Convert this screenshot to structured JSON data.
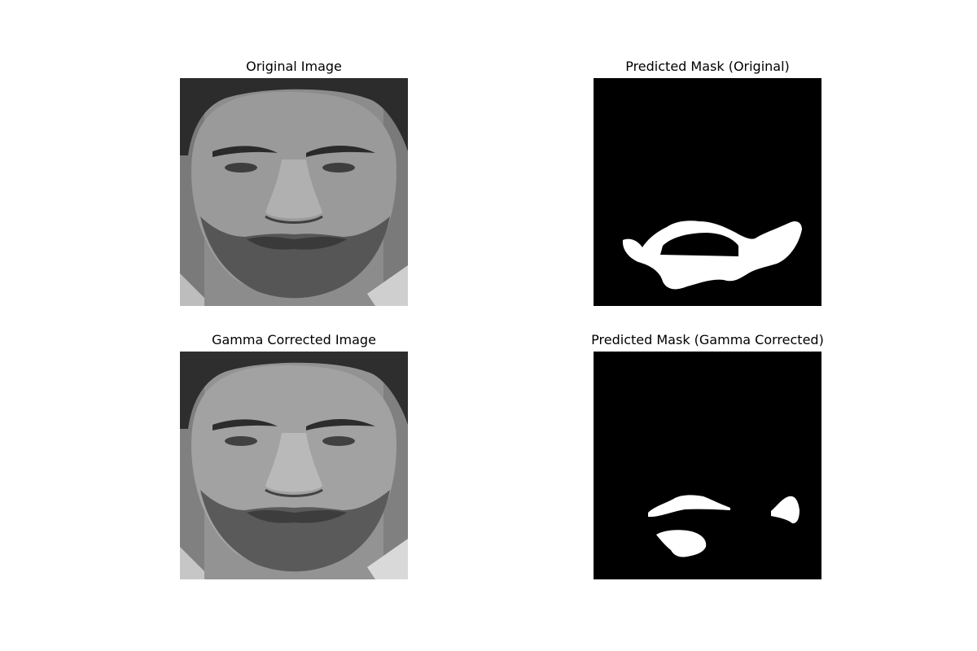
{
  "figure": {
    "panels": [
      {
        "title": "Original Image",
        "kind": "grayscale-face-photo"
      },
      {
        "title": "Predicted Mask (Original)",
        "kind": "binary-mask"
      },
      {
        "title": "Gamma Corrected Image",
        "kind": "grayscale-face-photo"
      },
      {
        "title": "Predicted Mask (Gamma Corrected)",
        "kind": "binary-mask"
      }
    ],
    "colors": {
      "mask_background": "#000000",
      "mask_foreground": "#ffffff",
      "page_background": "#ffffff"
    }
  }
}
